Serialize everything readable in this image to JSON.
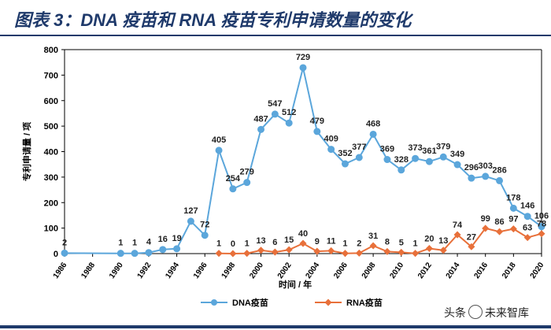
{
  "header": {
    "title": "图表 3：DNA 疫苗和 RNA 疫苗专利申请数量的变化"
  },
  "watermark": {
    "text_left": "头条",
    "text_right": "未来智库"
  },
  "colors": {
    "dna": "#5ba6db",
    "rna": "#e8703a",
    "title": "#1f3a6b",
    "axis": "#000000"
  },
  "chart_data": {
    "type": "line",
    "xlabel": "时间 / 年",
    "ylabel": "专利申请量 / 项",
    "ylim": [
      0,
      800
    ],
    "yticks": [
      0,
      100,
      200,
      300,
      400,
      500,
      600,
      700,
      800
    ],
    "xticks": [
      1986,
      1988,
      1990,
      1992,
      1994,
      1996,
      1998,
      2000,
      2002,
      2004,
      2006,
      2008,
      2010,
      2012,
      2014,
      2016,
      2018,
      2020
    ],
    "xlim": [
      1986,
      2020
    ],
    "legend_position": "bottom",
    "series": [
      {
        "name": "DNA疫苗",
        "color": "#5ba6db",
        "x": [
          1986,
          1990,
          1991,
          1992,
          1993,
          1994,
          1995,
          1996,
          1997,
          1998,
          1999,
          2000,
          2001,
          2002,
          2003,
          2004,
          2005,
          2006,
          2007,
          2008,
          2009,
          2010,
          2011,
          2012,
          2013,
          2014,
          2015,
          2016,
          2017,
          2018,
          2019,
          2020
        ],
        "values": [
          2,
          1,
          1,
          4,
          16,
          19,
          127,
          72,
          405,
          254,
          279,
          487,
          547,
          512,
          729,
          479,
          409,
          352,
          377,
          468,
          369,
          328,
          373,
          361,
          379,
          349,
          296,
          303,
          286,
          178,
          146,
          106
        ],
        "labels": [
          "2",
          "1",
          "1",
          "4",
          "16",
          "19",
          "127",
          "72",
          "405",
          "254",
          "279",
          "487",
          "547",
          "512",
          "729",
          "479",
          "409",
          "352",
          "377",
          "468",
          "369",
          "328",
          "373",
          "361",
          "379",
          "349",
          "296",
          "303",
          "286",
          "178",
          "146",
          "106"
        ]
      },
      {
        "name": "RNA疫苗",
        "color": "#e8703a",
        "x": [
          1997,
          1998,
          1999,
          2000,
          2001,
          2002,
          2003,
          2004,
          2005,
          2006,
          2007,
          2008,
          2009,
          2010,
          2011,
          2012,
          2013,
          2014,
          2015,
          2016,
          2017,
          2018,
          2019,
          2020
        ],
        "values": [
          1,
          0,
          1,
          13,
          6,
          15,
          40,
          9,
          11,
          1,
          2,
          31,
          8,
          5,
          1,
          20,
          13,
          74,
          27,
          99,
          86,
          97,
          63,
          78
        ],
        "labels": [
          "1",
          "0",
          "1",
          "13",
          "6",
          "15",
          "40",
          "9",
          "11",
          "1",
          "2",
          "31",
          "8",
          "5",
          "1",
          "20",
          "13",
          "74",
          "27",
          "99",
          "86",
          "97",
          "63",
          "78"
        ]
      }
    ]
  }
}
